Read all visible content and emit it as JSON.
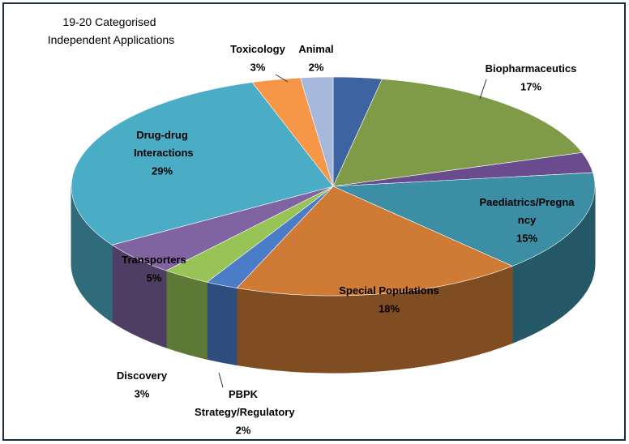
{
  "chart_data": {
    "type": "pie3d",
    "title": "19-20 Categorised Independent Applications",
    "categories": [
      null,
      "Biopharmaceutics",
      null,
      "Paediatrics/Pregnancy",
      "Special Populations",
      "PBPK Strategy/Regulatory",
      "Discovery",
      "Transporters",
      "Drug-drug Interactions",
      "Toxicology",
      "Animal"
    ],
    "values": [
      3,
      17,
      3,
      15,
      18,
      2,
      3,
      5,
      29,
      3,
      2
    ],
    "value_labels": [
      null,
      "17%",
      null,
      "15%",
      "18%",
      "2%",
      "3%",
      "5%",
      "29%",
      "3%",
      "2%"
    ],
    "colors": [
      "#3d64a0",
      "#7f9b48",
      "#6a4c8e",
      "#3c8ea5",
      "#cf7a35",
      "#4a7cc8",
      "#98c356",
      "#8064a2",
      "#4bacc6",
      "#f79646",
      "#a6b8dc"
    ]
  }
}
